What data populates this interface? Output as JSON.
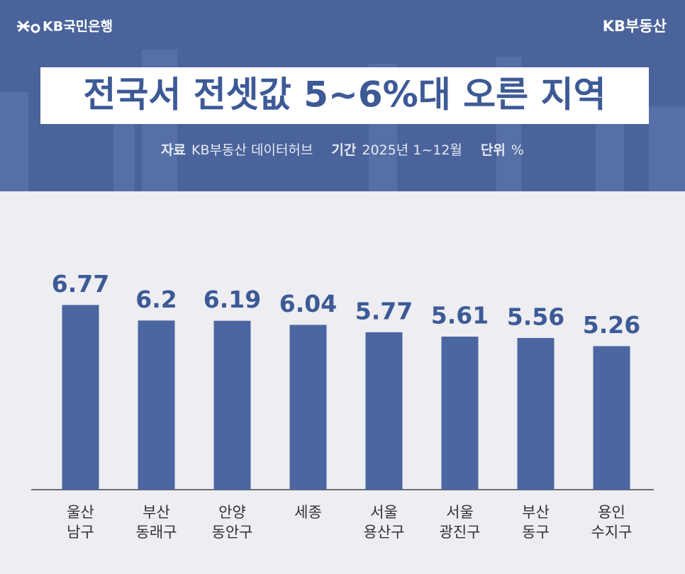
{
  "header": {
    "bank_logo": "KB국민은행",
    "brand": "KB부동산"
  },
  "chart_data": {
    "type": "bar",
    "title": "전국서 전셋값 5~6%대 오른 지역",
    "notes": [
      {
        "label": "자료",
        "text": "KB부동산 데이터허브"
      },
      {
        "label": "기간",
        "text": "2025년 1~12월"
      },
      {
        "label": "단위",
        "text": "%"
      }
    ],
    "categories": [
      [
        "울산",
        "남구"
      ],
      [
        "부산",
        "동래구"
      ],
      [
        "안양",
        "동안구"
      ],
      [
        "세종"
      ],
      [
        "서울",
        "용산구"
      ],
      [
        "서울",
        "광진구"
      ],
      [
        "부산",
        "동구"
      ],
      [
        "용인",
        "수지구"
      ]
    ],
    "values": [
      6.77,
      6.2,
      6.19,
      6.04,
      5.77,
      5.61,
      5.56,
      5.26
    ],
    "color": "#4b66a0",
    "ylim": [
      0,
      8
    ]
  }
}
